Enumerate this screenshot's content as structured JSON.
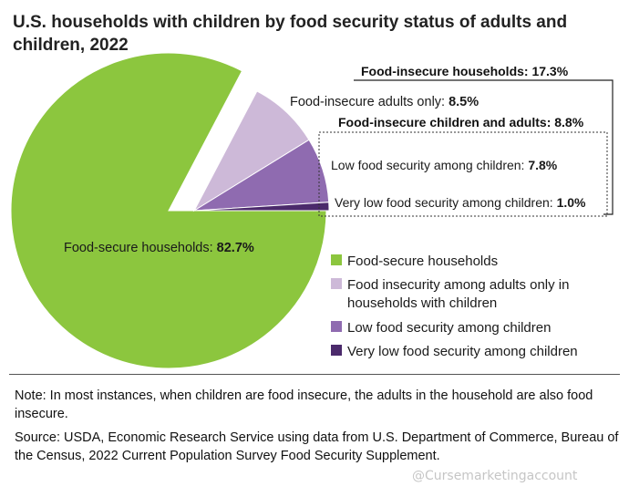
{
  "title": "U.S. households with children by food security status of adults and children, 2022",
  "chart_data": {
    "type": "pie",
    "title": "U.S. households with children by food security status of adults and children, 2022",
    "slices": [
      {
        "name": "Food-secure households",
        "value": 82.7,
        "color": "#8cc63e"
      },
      {
        "name": "Food-insecure adults only",
        "value": 8.5,
        "color": "#cdb9d8"
      },
      {
        "name": "Low food security among children",
        "value": 7.8,
        "color": "#8f6bb0"
      },
      {
        "name": "Very low food security among children",
        "value": 1.0,
        "color": "#4b2a6b"
      }
    ],
    "labels": {
      "food_secure": {
        "text": "Food-secure households: ",
        "value": "82.7%"
      },
      "adults_only": {
        "text": "Food-insecure adults only: ",
        "value": "8.5%"
      },
      "low_children": {
        "text": "Low food security among children: ",
        "value": "7.8%"
      },
      "very_low_children": {
        "text": "Very low food security among children: ",
        "value": "1.0%"
      }
    },
    "group_labels": {
      "food_insecure": "Food-insecure households: 17.3%",
      "children_and_adults": "Food-insecure children and adults: 8.8%"
    },
    "legend": [
      {
        "label": "Food-secure households",
        "color": "#8cc63e"
      },
      {
        "label": "Food insecurity among adults only in households with children",
        "color": "#cdb9d8"
      },
      {
        "label": "Low food security among children",
        "color": "#8f6bb0"
      },
      {
        "label": "Very low food security among children",
        "color": "#4b2a6b"
      }
    ]
  },
  "note": "Note: In most instances, when children are food insecure, the adults in the household are also food insecure.",
  "source": "Source: USDA, Economic Research Service using data from U.S. Department of Commerce, Bureau of the Census, 2022 Current Population Survey Food Security Supplement.",
  "watermark": "@Cursemarketingaccount"
}
